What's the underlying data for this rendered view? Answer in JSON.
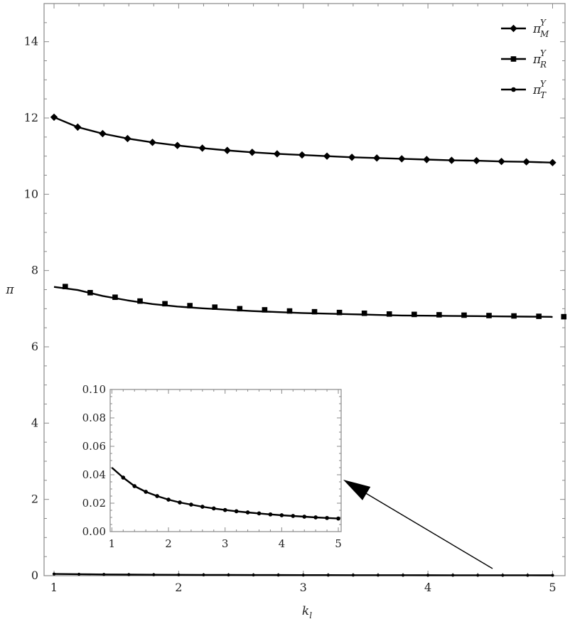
{
  "chart_data": {
    "type": "line",
    "xlabel": "k_l",
    "ylabel": "π",
    "xlim": [
      0.92,
      5.1
    ],
    "ylim": [
      0,
      15
    ],
    "x_ticks": [
      1,
      2,
      3,
      4,
      5
    ],
    "y_ticks": [
      0,
      2,
      4,
      6,
      8,
      10,
      12,
      14
    ],
    "grid": false,
    "legend_position": "top-right",
    "series": [
      {
        "name": "π_M^Y",
        "legend": {
          "base": "π",
          "sub": "M",
          "sup": "Y"
        },
        "marker": "diamond",
        "x": [
          1.0,
          1.19,
          1.39,
          1.59,
          1.79,
          1.99,
          2.19,
          2.39,
          2.59,
          2.79,
          2.99,
          3.19,
          3.39,
          3.59,
          3.79,
          3.99,
          4.19,
          4.39,
          4.59,
          4.79,
          5.0
        ],
        "values": [
          12.02,
          11.76,
          11.59,
          11.46,
          11.36,
          11.28,
          11.21,
          11.15,
          11.1,
          11.06,
          11.03,
          11.0,
          10.97,
          10.95,
          10.93,
          10.91,
          10.89,
          10.88,
          10.86,
          10.85,
          10.83
        ]
      },
      {
        "name": "π_R^Y",
        "legend": {
          "base": "π",
          "sub": "R",
          "sup": "Y"
        },
        "marker": "square",
        "x": [
          1.09,
          1.29,
          1.49,
          1.69,
          1.89,
          2.09,
          2.29,
          2.49,
          2.69,
          2.89,
          3.09,
          3.29,
          3.49,
          3.69,
          3.89,
          4.09,
          4.29,
          4.49,
          4.69,
          4.89,
          5.09
        ],
        "values": [
          7.58,
          7.42,
          7.3,
          7.2,
          7.13,
          7.08,
          7.04,
          7.0,
          6.97,
          6.94,
          6.92,
          6.9,
          6.88,
          6.86,
          6.85,
          6.84,
          6.83,
          6.82,
          6.81,
          6.8,
          6.79
        ]
      },
      {
        "name": "π_T^Y",
        "legend": {
          "base": "π",
          "sub": "T",
          "sup": "Y"
        },
        "marker": "circle",
        "x": [
          1.0,
          1.2,
          1.4,
          1.6,
          1.8,
          2.0,
          2.2,
          2.4,
          2.6,
          2.8,
          3.0,
          3.2,
          3.4,
          3.6,
          3.8,
          4.0,
          4.2,
          4.4,
          4.6,
          4.8,
          5.0
        ],
        "values": [
          0.045,
          0.038,
          0.032,
          0.028,
          0.025,
          0.0225,
          0.0205,
          0.019,
          0.0175,
          0.0163,
          0.0152,
          0.0143,
          0.0135,
          0.0128,
          0.0121,
          0.0115,
          0.011,
          0.0105,
          0.01,
          0.0096,
          0.0092
        ]
      }
    ],
    "inset": {
      "xlim": [
        0.97,
        5.05
      ],
      "ylim": [
        0,
        0.1
      ],
      "x_ticks": [
        1,
        2,
        3,
        4,
        5
      ],
      "y_tick_labels": [
        "0.00",
        "0.02",
        "0.04",
        "0.06",
        "0.08",
        "0.10"
      ],
      "series_ref": "π_T^Y",
      "annotation": "arrow pointing to π_T^Y curve near zero"
    }
  }
}
